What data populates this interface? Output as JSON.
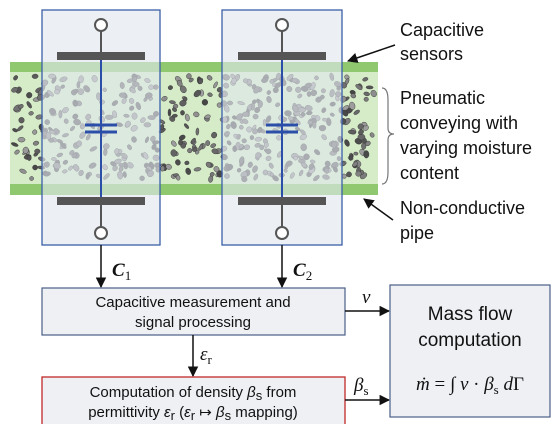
{
  "labels": {
    "capacitive_sensors": [
      "Capacitive",
      "sensors"
    ],
    "pneumatic": [
      "Pneumatic",
      "conveying with",
      "varying moisture",
      "content"
    ],
    "pipe": [
      "Non-conductive",
      "pipe"
    ]
  },
  "signals": {
    "c1": {
      "symbol": "C",
      "sub": "1"
    },
    "c2": {
      "symbol": "C",
      "sub": "2"
    },
    "v": "v",
    "eps": {
      "symbol": "ε",
      "sub": "r"
    },
    "beta": {
      "symbol": "β",
      "sub": "s"
    }
  },
  "boxes": {
    "measurement": [
      "Capacitive measurement and",
      "signal processing"
    ],
    "density": {
      "line1": [
        "Computation of density ",
        "β",
        "s",
        " from"
      ],
      "line2": [
        "permittivity ",
        "ε",
        "r",
        " (",
        "ε",
        "r",
        " ↦ ",
        "β",
        "s",
        " mapping)"
      ]
    },
    "mass_flow": {
      "lines": [
        "Mass flow",
        "computation"
      ],
      "formula": [
        "ṁ",
        " = ∫ ",
        "v",
        " · ",
        "β",
        "s",
        " d",
        "Γ"
      ]
    }
  }
}
